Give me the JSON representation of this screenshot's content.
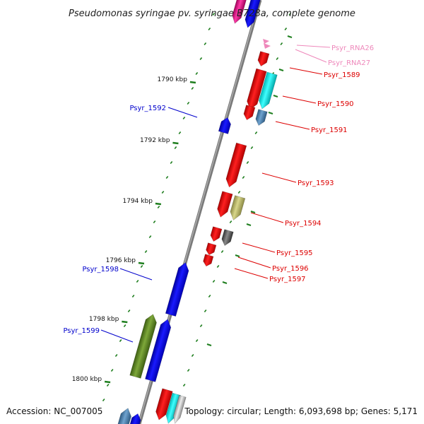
{
  "title": "Pseudomonas syringae pv. syringae B728a, complete genome",
  "accession": "Accession: NC_007005",
  "topology": "Topology: circular; Length: 6,093,698 bp; Genes: 5,171",
  "colors": {
    "forward_label": "#dd0000",
    "reverse_label": "#0000cc",
    "rna_label": "#ee88bb",
    "backbone": "#808080",
    "tick": "#1e7e1e"
  },
  "ticks": [
    "1790 kbp",
    "1792 kbp",
    "1794 kbp",
    "1796 kbp",
    "1798 kbp",
    "1800 kbp"
  ],
  "gene_labels": {
    "psyr_rna26": "Psyr_RNA26",
    "psyr_rna27": "Psyr_RNA27",
    "psyr_1589": "Psyr_1589",
    "psyr_1590": "Psyr_1590",
    "psyr_1591": "Psyr_1591",
    "psyr_1592": "Psyr_1592",
    "psyr_1593": "Psyr_1593",
    "psyr_1594": "Psyr_1594",
    "psyr_1595": "Psyr_1595",
    "psyr_1596": "Psyr_1596",
    "psyr_1597": "Psyr_1597",
    "psyr_1598": "Psyr_1598",
    "psyr_1599": "Psyr_1599"
  }
}
